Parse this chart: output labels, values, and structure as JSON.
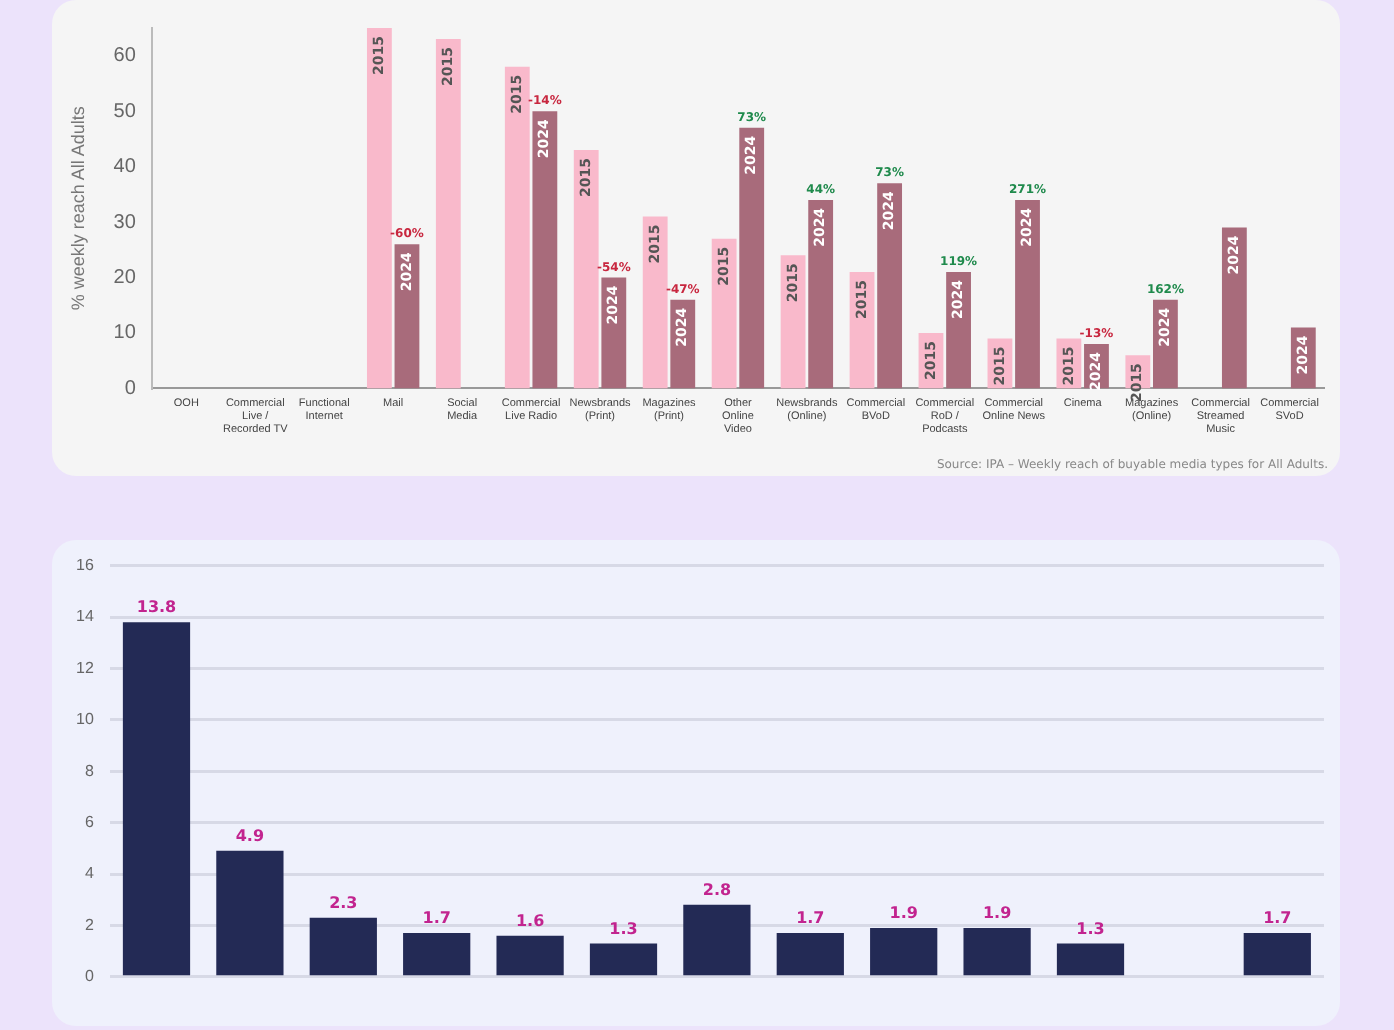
{
  "chart_data": [
    {
      "type": "bar",
      "ylabel": "% weekly reach All Adults",
      "categories": [
        "OOH",
        "Commercial Live / Recorded TV",
        "Functional Internet",
        "Mail",
        "Social Media",
        "Commercial Live Radio",
        "Newsbrands (Print)",
        "Magazines (Print)",
        "Other Online Video",
        "Newsbrands (Online)",
        "Commercial BVoD",
        "Commercial RoD / Podcasts",
        "Commercial Online News",
        "Cinema",
        "Magazines (Online)",
        "Commercial Streamed Music",
        "Commercial SVoD"
      ],
      "series": [
        {
          "name": "2015",
          "color": "#f9b9cb",
          "values": [
            null,
            null,
            null,
            65,
            63,
            58,
            43,
            31,
            27,
            24,
            21,
            10,
            9,
            9,
            6,
            null,
            null
          ]
        },
        {
          "name": "2024",
          "color": "#a86b7b",
          "values": [
            null,
            null,
            null,
            26,
            null,
            50,
            20,
            16,
            47,
            34,
            37,
            21,
            34,
            8,
            16,
            29,
            11
          ]
        }
      ],
      "ylim": [
        0,
        65
      ],
      "yticks": [
        0,
        10,
        20,
        30,
        40,
        50,
        60
      ],
      "grid": false,
      "legend": false,
      "annotations": [
        {
          "text": "-60%",
          "x": "Mail",
          "y": 26
        },
        {
          "text": "-14%",
          "x": "Commercial Live Radio",
          "y": 50
        },
        {
          "text": "-54%",
          "x": "Newsbrands (Print)",
          "y": 20
        },
        {
          "text": "-47%",
          "x": "Magazines (Print)",
          "y": 16
        },
        {
          "text": "73%",
          "x": "Other Online Video",
          "y": 47
        },
        {
          "text": "44%",
          "x": "Newsbrands (Online)",
          "y": 34
        },
        {
          "text": "73%",
          "x": "Commercial BVoD",
          "y": 37
        },
        {
          "text": "119%",
          "x": "Commercial RoD / Podcasts",
          "y": 21
        },
        {
          "text": "271%",
          "x": "Commercial Online News",
          "y": 34
        },
        {
          "text": "-13%",
          "x": "Cinema",
          "y": 8
        },
        {
          "text": "162%",
          "x": "Magazines (Online)",
          "y": 16
        },
        "Source: IPA – Weekly reach of buyable media types for All Adults."
      ]
    },
    {
      "type": "bar",
      "categories": [
        null,
        null,
        null,
        null,
        null,
        null,
        null,
        null,
        null,
        null,
        null,
        null,
        null
      ],
      "values": [
        13.8,
        4.9,
        2.3,
        1.7,
        1.6,
        1.3,
        2.8,
        1.7,
        1.9,
        1.9,
        1.3,
        null,
        1.7
      ],
      "color": "#232a55",
      "data_labels": true,
      "ylim": [
        0,
        16
      ],
      "yticks": [
        0,
        2,
        4,
        6,
        8,
        10,
        12,
        14,
        16
      ],
      "grid": "y",
      "legend": false
    }
  ]
}
